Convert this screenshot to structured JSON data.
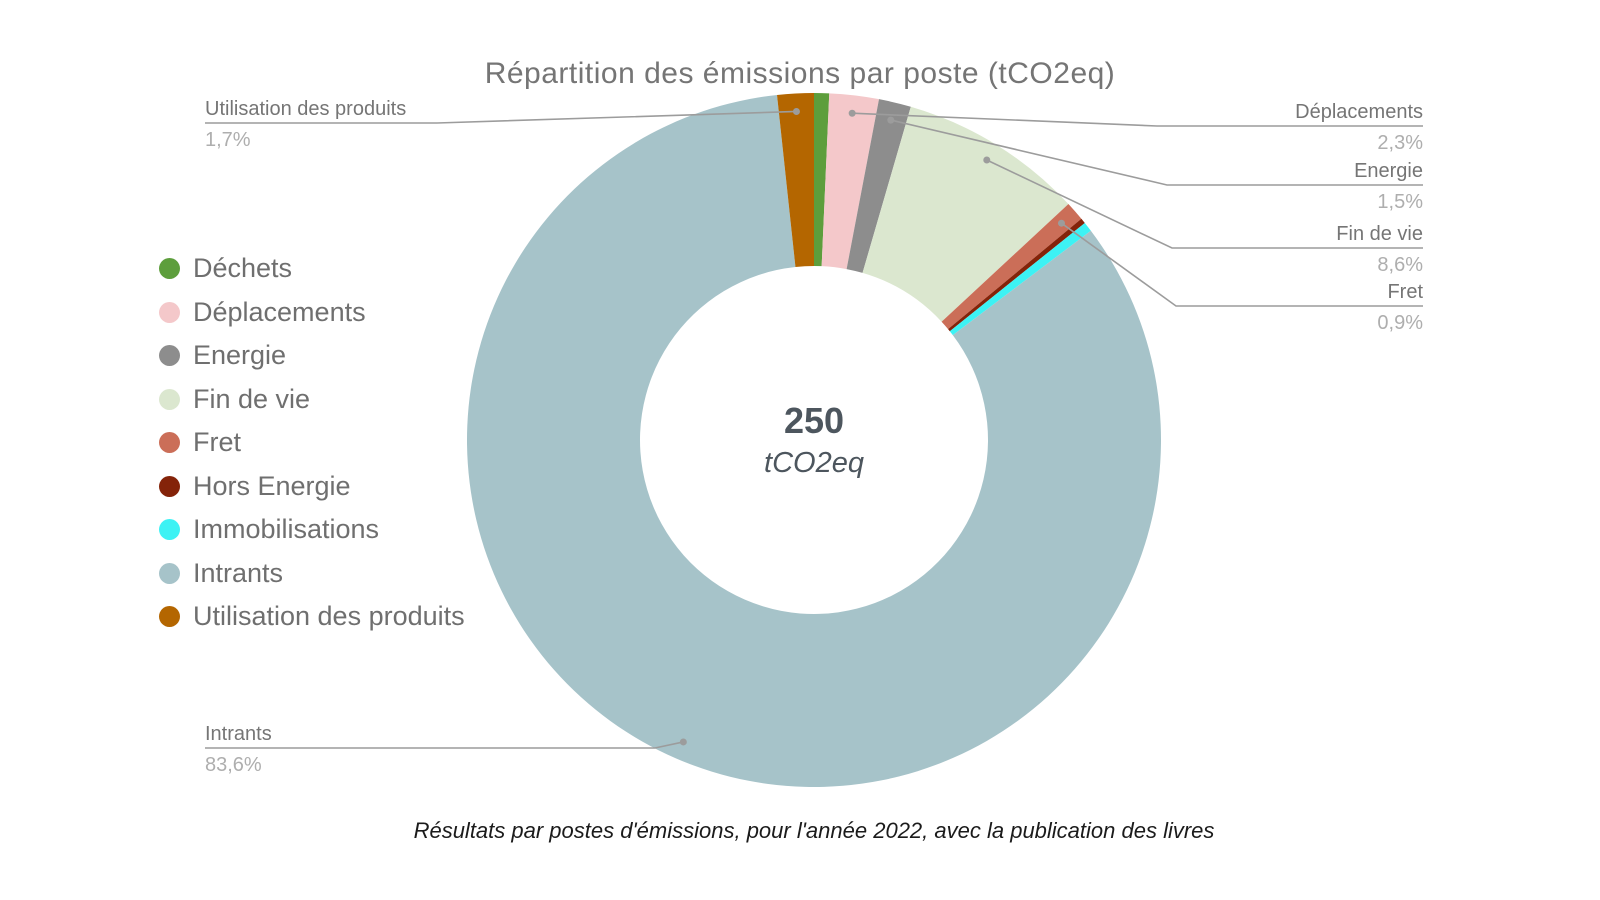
{
  "chart_data": {
    "type": "pie",
    "subtype": "donut",
    "title": "Répartition des émissions par poste (tCO2eq)",
    "caption": "Résultats par postes d'émissions, pour l'année 2022, avec la publication des livres",
    "center": {
      "value": "250",
      "unit": "tCO2eq"
    },
    "legend_position": "left",
    "start_angle_deg": 0,
    "direction": "clockwise",
    "series": [
      {
        "name": "Déchets",
        "pct": 0.7,
        "color": "#5d9e3c",
        "labeled": false
      },
      {
        "name": "Déplacements",
        "pct": 2.3,
        "color": "#f4c8ca",
        "labeled": true
      },
      {
        "name": "Energie",
        "pct": 1.5,
        "color": "#8d8d8d",
        "labeled": true
      },
      {
        "name": "Fin de vie",
        "pct": 8.6,
        "color": "#dbe7cf",
        "labeled": true
      },
      {
        "name": "Fret",
        "pct": 0.9,
        "color": "#cb6e58",
        "labeled": true
      },
      {
        "name": "Hors Energie",
        "pct": 0.25,
        "color": "#842309",
        "labeled": false
      },
      {
        "name": "Immobilisations",
        "pct": 0.45,
        "color": "#3df2f4",
        "labeled": false
      },
      {
        "name": "Intrants",
        "pct": 83.6,
        "color": "#a6c3c9",
        "labeled": true
      },
      {
        "name": "Utilisation des produits",
        "pct": 1.7,
        "color": "#b46600",
        "labeled": true
      }
    ],
    "callouts": [
      {
        "name": "Utilisation des produits",
        "pct": "1,7%"
      },
      {
        "name": "Déplacements",
        "pct": "2,3%"
      },
      {
        "name": "Energie",
        "pct": "1,5%"
      },
      {
        "name": "Fin de vie",
        "pct": "8,6%"
      },
      {
        "name": "Fret",
        "pct": "0,9%"
      },
      {
        "name": "Intrants",
        "pct": "83,6%"
      }
    ],
    "colors": {
      "title_text": "#757575",
      "callout_name_text": "#757575",
      "callout_pct_text": "#aeaeae",
      "leader_line": "#9c9c9c",
      "center_text": "#4d565e",
      "caption_text": "#1b1b1b",
      "background": "#ffffff"
    }
  }
}
